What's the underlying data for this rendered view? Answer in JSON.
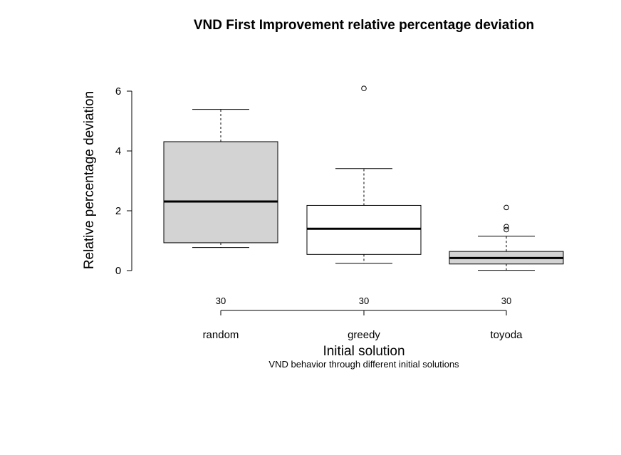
{
  "chart_data": {
    "type": "boxplot",
    "title": "VND First Improvement relative percentage deviation",
    "xlabel": "Initial solution",
    "ylabel": "Relative percentage deviation",
    "subtitle": "VND behavior through different initial solutions",
    "ylim": [
      0,
      6
    ],
    "yticks": [
      "0",
      "2",
      "4",
      "6"
    ],
    "grid": false,
    "categories": [
      "random",
      "greedy",
      "toyoda"
    ],
    "counts": [
      "30",
      "30",
      "30"
    ],
    "boxes": [
      {
        "name": "random",
        "min": 0.77,
        "q1": 0.93,
        "median": 2.31,
        "q3": 4.31,
        "max": 5.39,
        "outliers": [],
        "fill": "#d3d3d3"
      },
      {
        "name": "greedy",
        "min": 0.24,
        "q1": 0.54,
        "median": 1.4,
        "q3": 2.18,
        "max": 3.41,
        "outliers": [
          6.09
        ],
        "fill": "#ffffff"
      },
      {
        "name": "toyoda",
        "min": 0.01,
        "q1": 0.22,
        "median": 0.42,
        "q3": 0.64,
        "max": 1.15,
        "outliers": [
          1.37,
          1.47,
          2.11
        ],
        "fill": "#d3d3d3"
      }
    ]
  }
}
